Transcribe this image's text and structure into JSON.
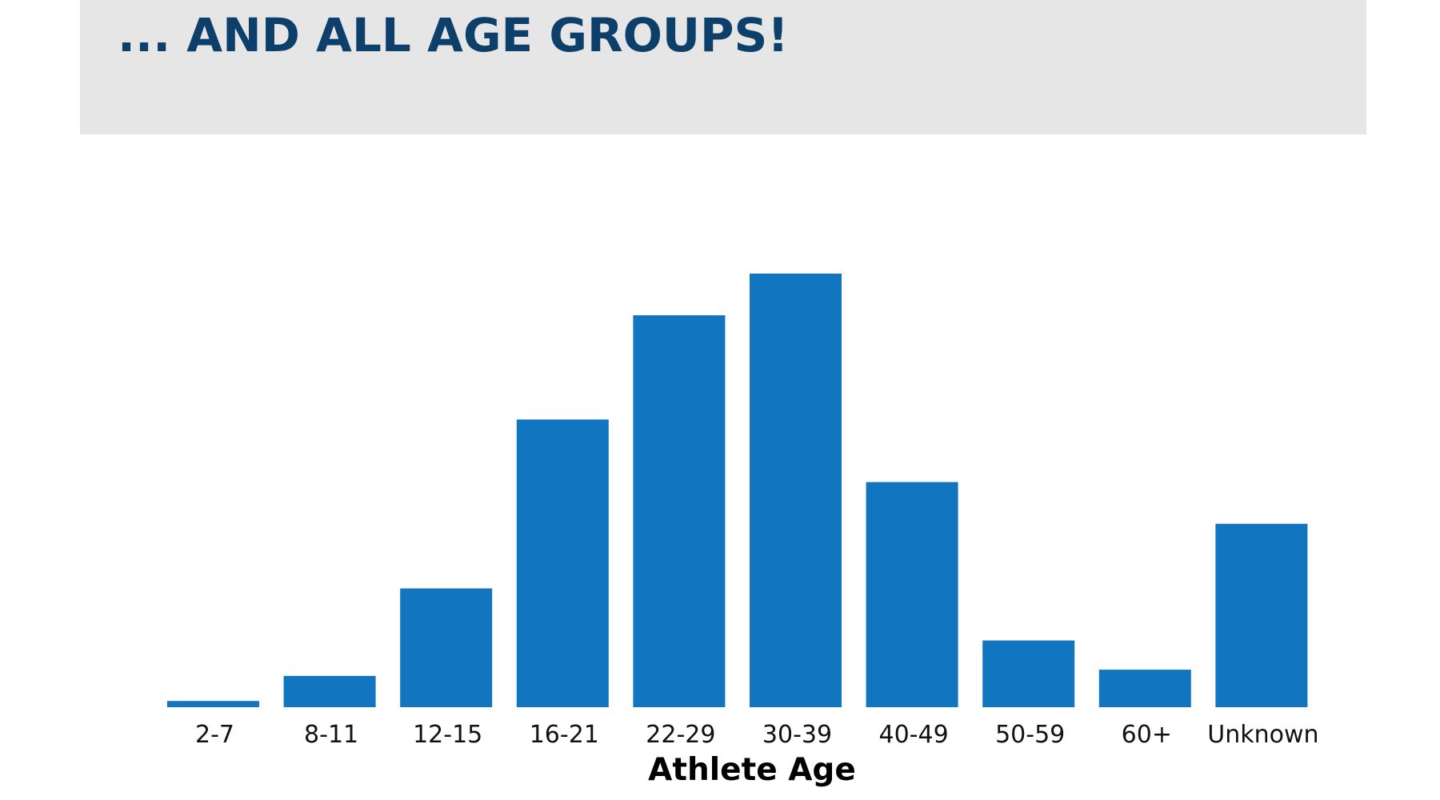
{
  "page": {
    "title": "... AND ALL AGE GROUPS!"
  },
  "colors": {
    "banner": "#e6e6e6",
    "title": "#0d3f6b",
    "bar": "#1176bf"
  },
  "chart_data": {
    "type": "bar",
    "title": "",
    "xlabel": "Athlete Age",
    "ylabel": "",
    "categories": [
      "2-7",
      "8-11",
      "12-15",
      "16-21",
      "22-29",
      "30-39",
      "40-49",
      "50-59",
      "60+",
      "Unknown"
    ],
    "values": [
      1.5,
      7.5,
      28.5,
      69,
      94,
      104,
      54,
      16,
      9,
      44
    ],
    "ylim": [
      0,
      104
    ],
    "grid": false,
    "legend": "none"
  }
}
